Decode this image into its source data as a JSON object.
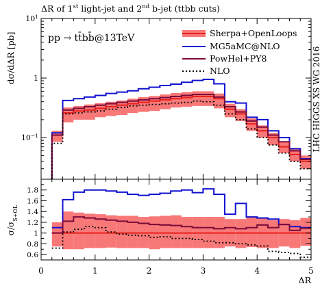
{
  "chart_data": [
    {
      "type": "line",
      "title": "ΔR of 1st light-jet and 2nd b-jet (ttbb cuts)",
      "title_parts": [
        "ΔR of 1",
        "st",
        " light-jet and 2",
        "nd",
        " b-jet (ttbb cuts)"
      ],
      "ylabel": "dσ/dΔR [pb]",
      "process": "pp → tt̄bb̄@13TeV",
      "side_label": "LHC HIGGS XS WG 2016",
      "yscale": "log",
      "xlim": [
        0,
        5
      ],
      "ylim": [
        0.02,
        10
      ],
      "yticks": [
        {
          "value": 0.1,
          "base": "10",
          "exp": "−1"
        },
        {
          "value": 1,
          "base": "1",
          "exp": ""
        },
        {
          "value": 10,
          "base": "10",
          "exp": "1"
        }
      ],
      "legend_position": "top-right",
      "bin_edges": [
        0.2,
        0.4,
        0.6,
        0.8,
        1.0,
        1.2,
        1.4,
        1.6,
        1.8,
        2.0,
        2.2,
        2.4,
        2.6,
        2.8,
        3.0,
        3.2,
        3.4,
        3.6,
        3.8,
        4.0,
        4.2,
        4.4,
        4.6,
        4.8,
        5.0
      ],
      "series": [
        {
          "name": "Sherpa+OpenLoops",
          "style": "band",
          "color": "#e8201c",
          "band_color": "#f87878",
          "values": [
            0.11,
            0.26,
            0.28,
            0.29,
            0.31,
            0.33,
            0.35,
            0.37,
            0.39,
            0.41,
            0.43,
            0.45,
            0.47,
            0.49,
            0.49,
            0.45,
            0.3,
            0.25,
            0.17,
            0.13,
            0.1,
            0.07,
            0.052,
            0.04
          ],
          "lower": [
            0.085,
            0.18,
            0.2,
            0.2,
            0.22,
            0.23,
            0.24,
            0.26,
            0.27,
            0.28,
            0.3,
            0.32,
            0.33,
            0.34,
            0.34,
            0.31,
            0.22,
            0.19,
            0.13,
            0.1,
            0.075,
            0.055,
            0.04,
            0.03
          ],
          "upper": [
            0.13,
            0.32,
            0.34,
            0.36,
            0.38,
            0.4,
            0.42,
            0.45,
            0.48,
            0.5,
            0.53,
            0.56,
            0.58,
            0.6,
            0.6,
            0.55,
            0.37,
            0.3,
            0.21,
            0.16,
            0.12,
            0.085,
            0.064,
            0.05
          ]
        },
        {
          "name": "MG5aMC@NLO",
          "style": "line",
          "color": "#1010d0",
          "values": [
            0.12,
            0.42,
            0.45,
            0.48,
            0.51,
            0.55,
            0.58,
            0.61,
            0.66,
            0.7,
            0.75,
            0.79,
            0.85,
            0.91,
            0.95,
            0.8,
            0.4,
            0.38,
            0.22,
            0.2,
            0.13,
            0.1,
            0.065,
            0.044
          ]
        },
        {
          "name": "PowHel+PY8",
          "style": "line",
          "color": "#7a0a3a",
          "values": [
            0.11,
            0.29,
            0.31,
            0.33,
            0.35,
            0.37,
            0.39,
            0.41,
            0.43,
            0.45,
            0.47,
            0.49,
            0.51,
            0.53,
            0.53,
            0.48,
            0.33,
            0.27,
            0.19,
            0.15,
            0.11,
            0.085,
            0.06,
            0.043
          ]
        },
        {
          "name": "NLO",
          "style": "dotted",
          "color": "#000000",
          "values": [
            0.08,
            0.25,
            0.26,
            0.27,
            0.28,
            0.3,
            0.32,
            0.34,
            0.35,
            0.36,
            0.37,
            0.38,
            0.39,
            0.41,
            0.4,
            0.35,
            0.25,
            0.2,
            0.14,
            0.1,
            0.075,
            0.055,
            0.04,
            0.03
          ]
        }
      ]
    },
    {
      "type": "line",
      "ylabel_main": "σ/σ",
      "ylabel_sub": "S+OL",
      "xlabel": "ΔR",
      "xlim": [
        0,
        5
      ],
      "ylim": [
        0.5,
        2.0
      ],
      "xticks": [
        0,
        1,
        2,
        3,
        4,
        5
      ],
      "yticks": [
        0.6,
        0.8,
        1,
        1.2,
        1.4,
        1.6,
        1.8
      ],
      "bin_edges": [
        0.2,
        0.4,
        0.6,
        0.8,
        1.0,
        1.2,
        1.4,
        1.6,
        1.8,
        2.0,
        2.2,
        2.4,
        2.6,
        2.8,
        3.0,
        3.2,
        3.4,
        3.6,
        3.8,
        4.0,
        4.2,
        4.4,
        4.6,
        4.8,
        5.0
      ],
      "series": [
        {
          "name": "Sherpa+OpenLoops",
          "style": "band",
          "color": "#e8201c",
          "band_color": "#f87878",
          "values": [
            1,
            1,
            1,
            1,
            1,
            1,
            1,
            1,
            1,
            1,
            1,
            1,
            1,
            1,
            1,
            1,
            1,
            1,
            1,
            1,
            1,
            1,
            1,
            1
          ],
          "lower": [
            0.75,
            0.7,
            0.7,
            0.72,
            0.72,
            0.73,
            0.72,
            0.72,
            0.72,
            0.7,
            0.72,
            0.72,
            0.72,
            0.72,
            0.72,
            0.72,
            0.75,
            0.72,
            0.74,
            0.72,
            0.72,
            0.75,
            0.72,
            0.76
          ],
          "upper": [
            1.2,
            1.4,
            1.38,
            1.36,
            1.35,
            1.33,
            1.32,
            1.32,
            1.3,
            1.31,
            1.32,
            1.33,
            1.3,
            1.3,
            1.3,
            1.3,
            1.26,
            1.26,
            1.3,
            1.28,
            1.24,
            1.26,
            1.24,
            1.28
          ]
        },
        {
          "name": "MG5aMC@NLO",
          "style": "line",
          "color": "#1010d0",
          "values": [
            1.1,
            1.62,
            1.76,
            1.8,
            1.8,
            1.78,
            1.76,
            1.72,
            1.7,
            1.72,
            1.74,
            1.78,
            1.8,
            1.75,
            1.82,
            1.72,
            1.35,
            1.55,
            1.3,
            1.28,
            1.26,
            1.16,
            1.12,
            1.1
          ]
        },
        {
          "name": "PowHel+PY8",
          "style": "line",
          "color": "#7a0a3a",
          "values": [
            1.0,
            1.22,
            1.3,
            1.28,
            1.26,
            1.24,
            1.22,
            1.2,
            1.18,
            1.16,
            1.15,
            1.14,
            1.12,
            1.1,
            1.1,
            1.08,
            1.1,
            1.08,
            1.1,
            1.15,
            1.1,
            1.16,
            1.05,
            1.09
          ]
        },
        {
          "name": "NLO",
          "style": "dotted",
          "color": "#000000",
          "values": [
            0.72,
            1.02,
            1.07,
            1.12,
            1.1,
            1.02,
            0.98,
            0.96,
            0.95,
            0.92,
            0.93,
            0.9,
            0.9,
            0.88,
            0.85,
            0.82,
            0.82,
            0.8,
            0.78,
            0.76,
            0.66,
            0.64,
            0.62,
            0.55
          ]
        }
      ]
    }
  ]
}
